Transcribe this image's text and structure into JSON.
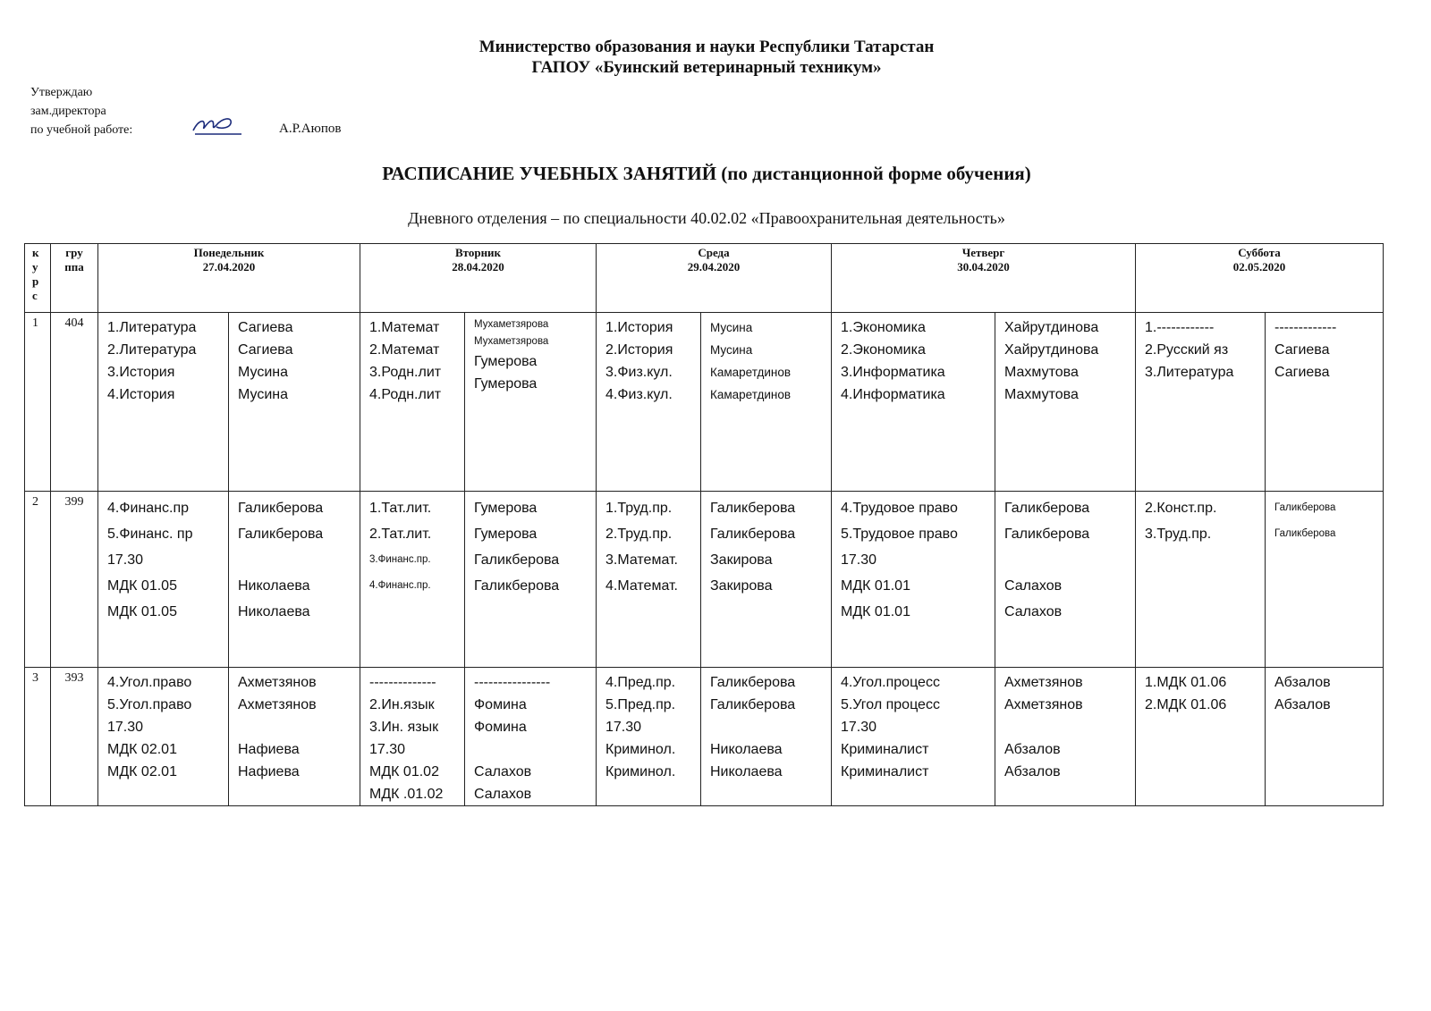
{
  "header": {
    "ministry": "Министерство образования и науки Республики Татарстан",
    "institution": "ГАПОУ «Буинский ветеринарный техникум»"
  },
  "approval": {
    "line1": "Утверждаю",
    "line2": "зам.директора",
    "line3": "по учебной  работе:",
    "name": "А.Р.Аюпов"
  },
  "title": "РАСПИСАНИЕ УЧЕБНЫХ ЗАНЯТИЙ (по дистанционной форме обучения)",
  "subtitle": "Дневного отделения – по специальности 40.02.02 «Правоохранительная деятельность»",
  "table": {
    "col_kurs": [
      "к",
      "у",
      "р",
      "с"
    ],
    "col_group": [
      "гру",
      "ппа"
    ],
    "days": [
      {
        "name": "Понедельник",
        "date": "27.04.2020"
      },
      {
        "name": "Вторник",
        "date": "28.04.2020"
      },
      {
        "name": "Среда",
        "date": "29.04.2020"
      },
      {
        "name": "Четверг",
        "date": "30.04.2020"
      },
      {
        "name": "Суббота",
        "date": "02.05.2020"
      }
    ],
    "rows": [
      {
        "kurs": "1",
        "group": "404",
        "cells": [
          [
            "1.Литература",
            "2.Литература",
            "3.История",
            "4.История"
          ],
          [
            "Сагиева",
            "Сагиева",
            "Мусина",
            "Мусина"
          ],
          [
            "1.Математ",
            "2.Математ",
            "3.Родн.лит",
            "4.Родн.лит"
          ],
          [
            "Мухаметзярова",
            "Мухаметзярова",
            "Гумерова",
            "Гумерова"
          ],
          [
            "1.История",
            "2.История",
            "3.Физ.кул.",
            "4.Физ.кул."
          ],
          [
            "Мусина",
            "Мусина",
            "Камаретдинов",
            "Камаретдинов"
          ],
          [
            "1.Экономика",
            "2.Экономика",
            "3.Информатика",
            "4.Информатика"
          ],
          [
            "Хайрутдинова",
            "Хайрутдинова",
            "Махмутова",
            "Махмутова"
          ],
          [
            "1.------------",
            "2.Русский яз",
            "3.Литература"
          ],
          [
            "-------------",
            "Сагиева",
            "Сагиева"
          ]
        ]
      },
      {
        "kurs": "2",
        "group": "399",
        "cells": [
          [
            "4.Финанс.пр",
            "5.Финанс. пр",
            "17.30",
            "МДК 01.05",
            "МДК 01.05"
          ],
          [
            "Галикберова",
            "Галикберова",
            "",
            "Николаева",
            "Николаева"
          ],
          [
            "1.Тат.лит.",
            "2.Тат.лит.",
            "3.Финанс.пр.",
            "4.Финанс.пр."
          ],
          [
            "Гумерова",
            "Гумерова",
            "Галикберова",
            "Галикберова"
          ],
          [
            "1.Труд.пр.",
            "2.Труд.пр.",
            "3.Математ.",
            "4.Математ."
          ],
          [
            "Галикберова",
            "Галикберова",
            "Закирова",
            "Закирова"
          ],
          [
            "4.Трудовое право",
            "5.Трудовое право",
            "17.30",
            "МДК 01.01",
            "МДК 01.01"
          ],
          [
            "Галикберова",
            "Галикберова",
            "",
            "Салахов",
            "Салахов"
          ],
          [
            "2.Конст.пр.",
            "3.Труд.пр."
          ],
          [
            "Галикберова",
            "Галикберова"
          ]
        ]
      },
      {
        "kurs": "3",
        "group": "393",
        "cells": [
          [
            "4.Угол.право",
            "5.Угол.право",
            "17.30",
            "МДК 02.01",
            "МДК 02.01"
          ],
          [
            "Ахметзянов",
            "Ахметзянов",
            "",
            "Нафиева",
            "Нафиева"
          ],
          [
            "--------------",
            "2.Ин.язык",
            "3.Ин. язык",
            "17.30",
            "МДК 01.02",
            "МДК .01.02"
          ],
          [
            "----------------",
            "Фомина",
            "Фомина",
            "",
            "Салахов",
            "Салахов"
          ],
          [
            "4.Пред.пр.",
            "5.Пред.пр.",
            "17.30",
            "Криминол.",
            "Криминол."
          ],
          [
            "Галикберова",
            "Галикберова",
            "",
            "Николаева",
            "Николаева"
          ],
          [
            "4.Угол.процесс",
            "5.Угол процесс",
            "17.30",
            "Криминалист",
            "Криминалист"
          ],
          [
            "Ахметзянов",
            "Ахметзянов",
            "",
            "Абзалов",
            "Абзалов"
          ],
          [
            "1.МДК 01.06",
            "2.МДК 01.06"
          ],
          [
            "Абзалов",
            "Абзалов"
          ]
        ]
      }
    ]
  }
}
